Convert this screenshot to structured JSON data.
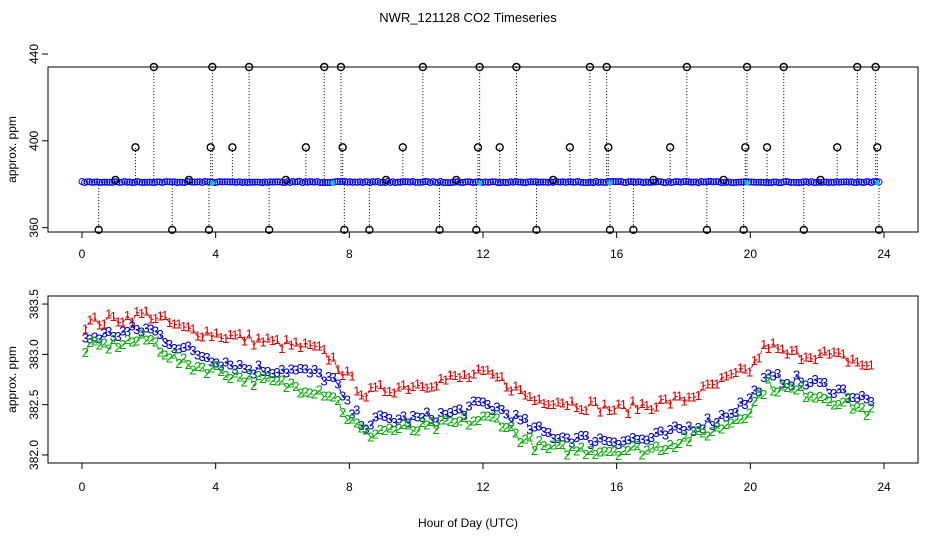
{
  "title": "NWR_121128  CO2 Timeseries",
  "chart_data": [
    {
      "type": "scatter",
      "title": "NWR_121128  CO2 Timeseries",
      "xlabel": "",
      "ylabel": "approx. ppm",
      "xlim": [
        -0.5,
        24.7
      ],
      "ylim": [
        358,
        434
      ],
      "x_ticks": [
        0,
        4,
        8,
        12,
        16,
        20,
        24
      ],
      "y_ticks": [
        360,
        400,
        440
      ],
      "baseline": 381,
      "spike_times": [
        0.5,
        1.0,
        1.6,
        2.15,
        2.7,
        3.2,
        3.8,
        3.85,
        3.9,
        4.5,
        5.0,
        5.6,
        6.1,
        6.7,
        7.25,
        7.75,
        7.8,
        7.85,
        8.6,
        9.1,
        9.6,
        10.2,
        10.7,
        11.2,
        11.8,
        11.85,
        11.9,
        12.5,
        13.0,
        13.6,
        14.1,
        14.6,
        15.2,
        15.7,
        15.75,
        15.8,
        16.5,
        17.1,
        17.6,
        18.1,
        18.7,
        19.2,
        19.8,
        19.85,
        19.9,
        20.5,
        21.0,
        21.6,
        22.1,
        22.6,
        23.2,
        23.75,
        23.8,
        23.85
      ],
      "spike_values": [
        359,
        382,
        397,
        434,
        359,
        382,
        359,
        397,
        434,
        397,
        434,
        359,
        382,
        397,
        434,
        434,
        397,
        359,
        359,
        382,
        397,
        434,
        359,
        382,
        359,
        397,
        434,
        397,
        434,
        359,
        382,
        397,
        434,
        434,
        397,
        359,
        359,
        382,
        397,
        434,
        359,
        382,
        359,
        397,
        434,
        397,
        434,
        359,
        382,
        397,
        434,
        434,
        397,
        359
      ],
      "series_colors": {
        "points": "#000000",
        "band": "#0000ff",
        "highlight": "#00cccc"
      }
    },
    {
      "type": "line",
      "title": "",
      "xlabel": "Hour of Day (UTC)",
      "ylabel": "approx. ppm",
      "xlim": [
        -0.5,
        24.7
      ],
      "ylim": [
        381.92,
        383.58
      ],
      "x_ticks": [
        0,
        4,
        8,
        12,
        16,
        20,
        24
      ],
      "y_ticks": [
        382.0,
        382.5,
        383.0,
        383.5
      ],
      "y_tick_labels": [
        "382.0",
        "382.5",
        "383.0",
        "383.5"
      ],
      "x": [
        0,
        1,
        2,
        3,
        4,
        5,
        6,
        7,
        7.5,
        8,
        8.5,
        9,
        10,
        11,
        12,
        12.5,
        13,
        13.5,
        14,
        15,
        16,
        17,
        18,
        19,
        20,
        20.3,
        20.5,
        21,
        22,
        23,
        23.7
      ],
      "series": [
        {
          "name": "1",
          "color": "#dd0000",
          "values": [
            383.3,
            383.35,
            383.4,
            383.25,
            383.2,
            383.15,
            383.1,
            383.05,
            382.95,
            382.75,
            382.6,
            382.65,
            382.7,
            382.75,
            382.8,
            382.75,
            382.65,
            382.55,
            382.55,
            382.5,
            382.45,
            382.5,
            382.55,
            382.7,
            382.85,
            383.0,
            383.1,
            383.0,
            383.0,
            382.95,
            382.85
          ]
        },
        {
          "name": "3",
          "color": "#0000cc",
          "values": [
            383.15,
            383.2,
            383.25,
            383.05,
            382.95,
            382.85,
            382.85,
            382.8,
            382.75,
            382.45,
            382.3,
            382.35,
            382.35,
            382.4,
            382.5,
            382.45,
            382.35,
            382.25,
            382.2,
            382.15,
            382.15,
            382.15,
            382.25,
            382.35,
            382.55,
            382.7,
            382.75,
            382.75,
            382.7,
            382.6,
            382.5
          ]
        },
        {
          "name": "2",
          "color": "#00aa00",
          "values": [
            383.05,
            383.1,
            383.15,
            382.9,
            382.85,
            382.75,
            382.7,
            382.65,
            382.6,
            382.35,
            382.2,
            382.25,
            382.25,
            382.3,
            382.35,
            382.35,
            382.2,
            382.1,
            382.05,
            382.05,
            382.05,
            382.05,
            382.15,
            382.25,
            382.45,
            382.6,
            382.7,
            382.65,
            382.6,
            382.5,
            382.4
          ]
        }
      ]
    }
  ]
}
